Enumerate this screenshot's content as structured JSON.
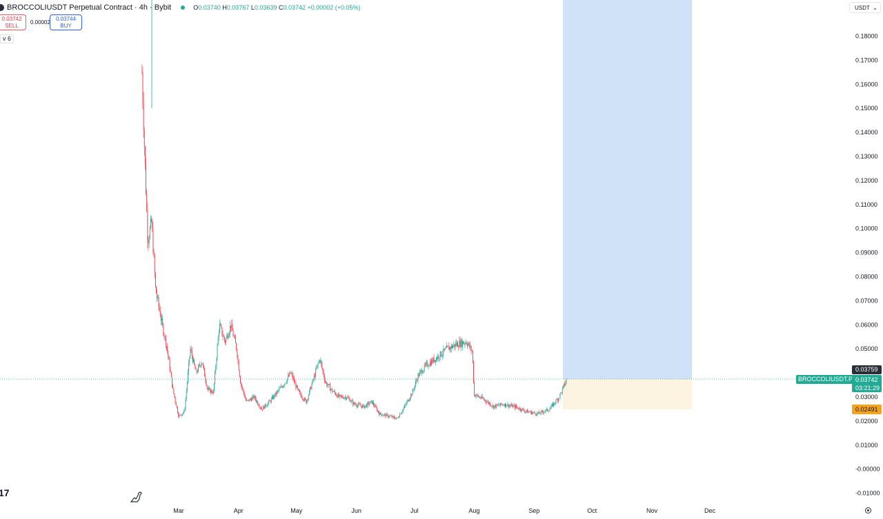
{
  "header": {
    "symbol": "BROCCOLIUSDT Perpetual Contract · 4h · Bybit",
    "open_label": "O",
    "open": "0.03740",
    "high_label": "H",
    "high": "0.03767",
    "low_label": "L",
    "low": "0.03639",
    "close_label": "C",
    "close": "0.03742",
    "change": "+0.00002 (+0.05%)"
  },
  "trade": {
    "sell_price": "0.03742",
    "sell_label": "SELL",
    "spread": "0.00002",
    "buy_price": "0.03744",
    "buy_label": "BUY"
  },
  "volume_indicator": "v 6",
  "currency_selector": {
    "value": "USDT",
    "icon": "chevron-down-icon"
  },
  "logo_text": "17",
  "price_tags": {
    "symbol_label": "BROCCOLIUSDT.P",
    "high": "0.03759",
    "last": "0.03742",
    "countdown": "03:21:29",
    "stop": "0.02491"
  },
  "colors": {
    "up": "#22ab94",
    "down": "#f23645",
    "profit_zone": "#cfe2f8",
    "loss_zone": "#fdf3e1",
    "stop_tag": "#f7a21b",
    "last_price": "#22ab94"
  },
  "chart_data": {
    "type": "candlestick",
    "timeframe": "4h",
    "y_axis": {
      "ticks": [
        "0.18000",
        "0.17000",
        "0.16000",
        "0.15000",
        "0.14000",
        "0.13000",
        "0.12000",
        "0.11000",
        "0.10000",
        "0.09000",
        "0.08000",
        "0.07000",
        "0.06000",
        "0.05000",
        "0.03000",
        "0.02000",
        "0.01000",
        "-0.00000",
        "-0.01000"
      ],
      "ylim": [
        -0.0105,
        0.1865
      ]
    },
    "x_axis": {
      "ticks": [
        "Mar",
        "Apr",
        "May",
        "Jun",
        "Jul",
        "Aug",
        "Sep",
        "Oct",
        "Nov",
        "Dec"
      ]
    },
    "last_price": 0.03742,
    "position_tool": {
      "entry": 0.03742,
      "stop": 0.02491,
      "target_above_visible": true
    },
    "price_path": [
      {
        "x": "2025-02-10",
        "price": 0.165
      },
      {
        "x": "2025-02-11",
        "price": 0.14
      },
      {
        "x": "2025-02-13",
        "price": 0.095
      },
      {
        "x": "2025-02-15",
        "price": 0.103
      },
      {
        "x": "2025-02-17",
        "price": 0.075
      },
      {
        "x": "2025-02-20",
        "price": 0.062
      },
      {
        "x": "2025-02-23",
        "price": 0.05
      },
      {
        "x": "2025-02-26",
        "price": 0.033
      },
      {
        "x": "2025-03-01",
        "price": 0.022
      },
      {
        "x": "2025-03-04",
        "price": 0.024
      },
      {
        "x": "2025-03-07",
        "price": 0.05
      },
      {
        "x": "2025-03-10",
        "price": 0.04
      },
      {
        "x": "2025-03-13",
        "price": 0.045
      },
      {
        "x": "2025-03-16",
        "price": 0.033
      },
      {
        "x": "2025-03-19",
        "price": 0.032
      },
      {
        "x": "2025-03-22",
        "price": 0.06
      },
      {
        "x": "2025-03-25",
        "price": 0.053
      },
      {
        "x": "2025-03-28",
        "price": 0.06
      },
      {
        "x": "2025-03-31",
        "price": 0.05
      },
      {
        "x": "2025-04-02",
        "price": 0.036
      },
      {
        "x": "2025-04-05",
        "price": 0.028
      },
      {
        "x": "2025-04-09",
        "price": 0.03
      },
      {
        "x": "2025-04-13",
        "price": 0.025
      },
      {
        "x": "2025-04-17",
        "price": 0.028
      },
      {
        "x": "2025-04-21",
        "price": 0.032
      },
      {
        "x": "2025-04-25",
        "price": 0.036
      },
      {
        "x": "2025-04-28",
        "price": 0.04
      },
      {
        "x": "2025-05-02",
        "price": 0.032
      },
      {
        "x": "2025-05-06",
        "price": 0.028
      },
      {
        "x": "2025-05-10",
        "price": 0.038
      },
      {
        "x": "2025-05-13",
        "price": 0.046
      },
      {
        "x": "2025-05-16",
        "price": 0.036
      },
      {
        "x": "2025-05-19",
        "price": 0.033
      },
      {
        "x": "2025-05-23",
        "price": 0.03
      },
      {
        "x": "2025-05-27",
        "price": 0.03
      },
      {
        "x": "2025-05-31",
        "price": 0.027
      },
      {
        "x": "2025-06-05",
        "price": 0.026
      },
      {
        "x": "2025-06-09",
        "price": 0.028
      },
      {
        "x": "2025-06-13",
        "price": 0.023
      },
      {
        "x": "2025-06-18",
        "price": 0.022
      },
      {
        "x": "2025-06-22",
        "price": 0.021
      },
      {
        "x": "2025-06-26",
        "price": 0.026
      },
      {
        "x": "2025-06-30",
        "price": 0.032
      },
      {
        "x": "2025-07-03",
        "price": 0.039
      },
      {
        "x": "2025-07-07",
        "price": 0.043
      },
      {
        "x": "2025-07-12",
        "price": 0.046
      },
      {
        "x": "2025-07-18",
        "price": 0.05
      },
      {
        "x": "2025-07-23",
        "price": 0.052
      },
      {
        "x": "2025-07-28",
        "price": 0.053
      },
      {
        "x": "2025-07-31",
        "price": 0.049
      },
      {
        "x": "2025-08-01",
        "price": 0.031
      },
      {
        "x": "2025-08-06",
        "price": 0.029
      },
      {
        "x": "2025-08-11",
        "price": 0.026
      },
      {
        "x": "2025-08-16",
        "price": 0.027
      },
      {
        "x": "2025-08-22",
        "price": 0.026
      },
      {
        "x": "2025-08-28",
        "price": 0.024
      },
      {
        "x": "2025-09-03",
        "price": 0.023
      },
      {
        "x": "2025-09-09",
        "price": 0.025
      },
      {
        "x": "2025-09-14",
        "price": 0.03
      },
      {
        "x": "2025-09-18",
        "price": 0.03742
      }
    ]
  }
}
